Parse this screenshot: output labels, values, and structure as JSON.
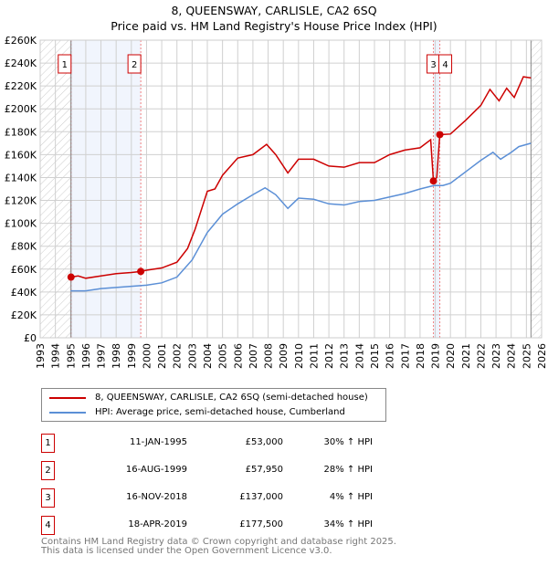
{
  "chart_data": {
    "type": "line",
    "title": "8, QUEENSWAY, CARLISLE, CA2 6SQ",
    "subtitle": "Price paid vs. HM Land Registry's House Price Index (HPI)",
    "xlim": [
      1993,
      2026
    ],
    "ylim": [
      0,
      260000
    ],
    "x_ticks": [
      "1993",
      "1994",
      "1995",
      "1996",
      "1997",
      "1998",
      "1999",
      "2000",
      "2001",
      "2002",
      "2003",
      "2004",
      "2005",
      "2006",
      "2007",
      "2008",
      "2009",
      "2010",
      "2011",
      "2012",
      "2013",
      "2014",
      "2015",
      "2016",
      "2017",
      "2018",
      "2019",
      "2020",
      "2021",
      "2022",
      "2023",
      "2024",
      "2025",
      "2026"
    ],
    "y_ticks": [
      {
        "v": 0,
        "l": "£0"
      },
      {
        "v": 20000,
        "l": "£20K"
      },
      {
        "v": 40000,
        "l": "£40K"
      },
      {
        "v": 60000,
        "l": "£60K"
      },
      {
        "v": 80000,
        "l": "£80K"
      },
      {
        "v": 100000,
        "l": "£100K"
      },
      {
        "v": 120000,
        "l": "£120K"
      },
      {
        "v": 140000,
        "l": "£140K"
      },
      {
        "v": 160000,
        "l": "£160K"
      },
      {
        "v": 180000,
        "l": "£180K"
      },
      {
        "v": 200000,
        "l": "£200K"
      },
      {
        "v": 220000,
        "l": "£220K"
      },
      {
        "v": 240000,
        "l": "£240K"
      },
      {
        "v": 260000,
        "l": "£260K"
      }
    ],
    "series": [
      {
        "name": "8, QUEENSWAY, CARLISLE, CA2 6SQ (semi-detached house)",
        "color": "#cc0000",
        "x": [
          1995.03,
          1995.5,
          1996,
          1997,
          1998,
          1999,
          1999.62,
          2000,
          2001,
          2002,
          2002.7,
          2003.2,
          2004,
          2004.5,
          2005,
          2006,
          2007,
          2007.9,
          2008.5,
          2009.3,
          2010,
          2011,
          2012,
          2013,
          2014,
          2015,
          2016,
          2017,
          2018,
          2018.7,
          2018.88,
          2019.1,
          2019.3,
          2020,
          2021,
          2022,
          2022.6,
          2023.2,
          2023.7,
          2024.2,
          2024.8,
          2025.3
        ],
        "y": [
          53000,
          54000,
          52000,
          54000,
          56000,
          57000,
          57950,
          59000,
          61000,
          66000,
          78000,
          95000,
          128000,
          130000,
          142000,
          157000,
          160000,
          169000,
          160000,
          144000,
          156000,
          156000,
          150000,
          149000,
          153000,
          153000,
          160000,
          164000,
          166000,
          173000,
          137000,
          140000,
          177500,
          178000,
          190000,
          203000,
          217000,
          207000,
          218000,
          210000,
          228000,
          227000
        ]
      },
      {
        "name": "HPI: Average price, semi-detached house, Cumberland",
        "color": "#5b8fd6",
        "x": [
          1995,
          1996,
          1997,
          1998,
          1999,
          2000,
          2001,
          2002,
          2003,
          2004,
          2005,
          2006,
          2007,
          2007.8,
          2008.5,
          2009.3,
          2010,
          2011,
          2012,
          2013,
          2014,
          2015,
          2016,
          2017,
          2018,
          2018.9,
          2019.5,
          2020,
          2021,
          2022,
          2022.8,
          2023.3,
          2024,
          2024.5,
          2025.3
        ],
        "y": [
          41000,
          41000,
          43000,
          44000,
          45000,
          46000,
          48000,
          53000,
          68000,
          92000,
          108000,
          117000,
          125000,
          131000,
          125000,
          113000,
          122000,
          121000,
          117000,
          116000,
          119000,
          120000,
          123000,
          126000,
          130000,
          133000,
          133000,
          135000,
          145000,
          155000,
          162000,
          156000,
          162000,
          167000,
          170000
        ]
      }
    ],
    "sales": [
      {
        "n": "1",
        "date": "11-JAN-1995",
        "x": 1995.03,
        "price": "£53,000",
        "v": 53000,
        "hpi": "30% ↑ HPI"
      },
      {
        "n": "2",
        "date": "16-AUG-1999",
        "x": 1999.62,
        "price": "£57,950",
        "v": 57950,
        "hpi": "28% ↑ HPI"
      },
      {
        "n": "3",
        "date": "16-NOV-2018",
        "x": 2018.88,
        "price": "£137,000",
        "v": 137000,
        "hpi": "4% ↑ HPI"
      },
      {
        "n": "4",
        "date": "18-APR-2019",
        "x": 2019.3,
        "price": "£177,500",
        "v": 177500,
        "hpi": "34% ↑ HPI"
      }
    ]
  },
  "footer": [
    "Contains HM Land Registry data © Crown copyright and database right 2025.",
    "This data is licensed under the Open Government Licence v3.0."
  ]
}
